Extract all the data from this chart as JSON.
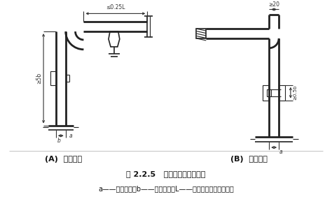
{
  "bg_color": "#ffffff",
  "title_fig": "图 2.2.5   硬母线的立弯与平弯",
  "caption": "a——母线厚度；b——母线宽度；L——母线两支持点间的距离",
  "label_A": "(A)  立弯母线",
  "label_B": "(B)  平弯母线",
  "text_color": "#111111",
  "line_color": "#222222",
  "dim_color": "#333333"
}
